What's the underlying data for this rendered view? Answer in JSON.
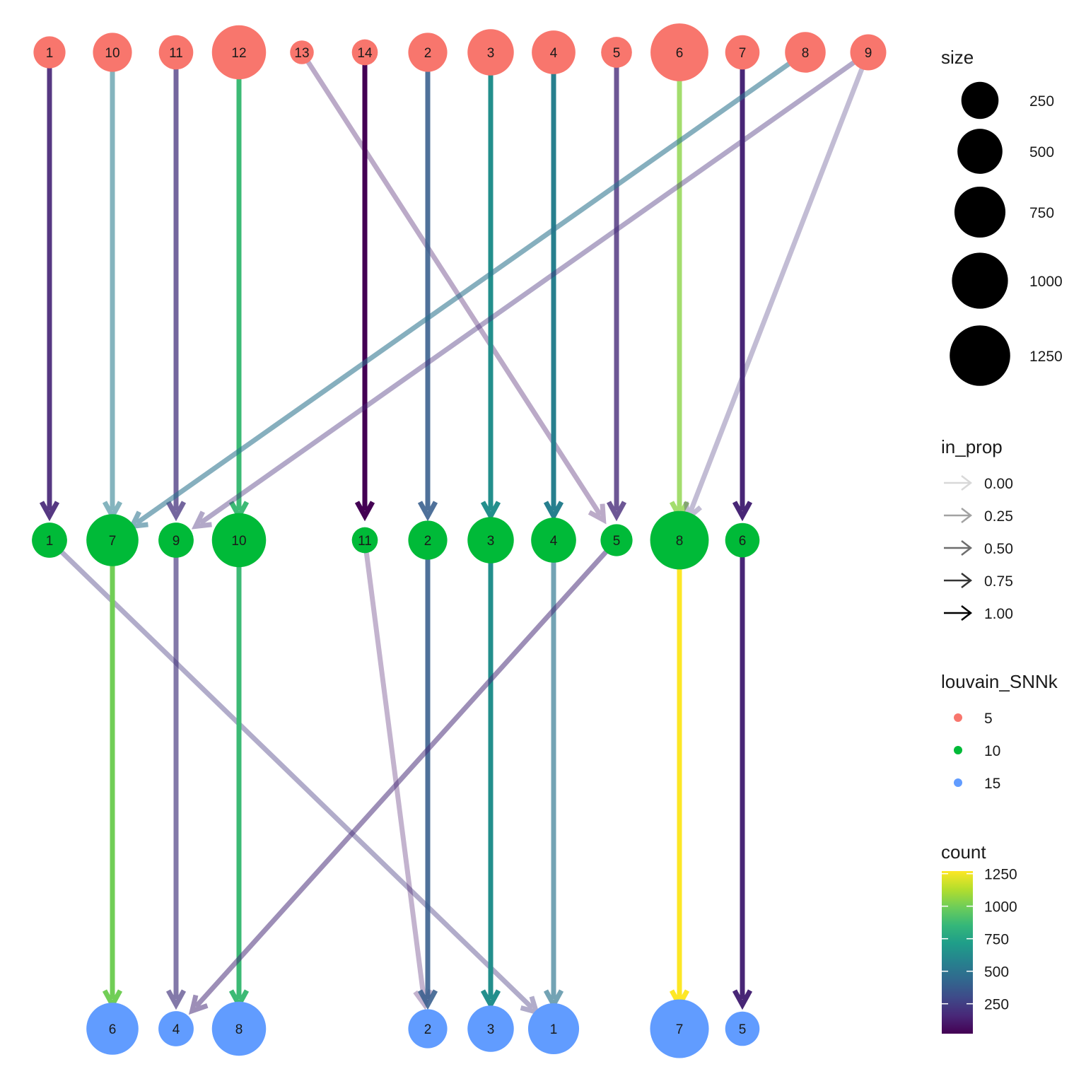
{
  "chart_data": {
    "type": "clustree",
    "levels": [
      {
        "resolution": "5",
        "color": "#F8766D",
        "clusters": [
          {
            "id": "1",
            "size": 130
          },
          {
            "id": "10",
            "size": 300
          },
          {
            "id": "11",
            "size": 180
          },
          {
            "id": "12",
            "size": 900
          },
          {
            "id": "13",
            "size": 20
          },
          {
            "id": "14",
            "size": 40
          },
          {
            "id": "2",
            "size": 300
          },
          {
            "id": "3",
            "size": 550
          },
          {
            "id": "4",
            "size": 450
          },
          {
            "id": "5",
            "size": 110
          },
          {
            "id": "6",
            "size": 1100
          },
          {
            "id": "7",
            "size": 180
          },
          {
            "id": "8",
            "size": 350
          },
          {
            "id": "9",
            "size": 220
          }
        ]
      },
      {
        "resolution": "10",
        "color": "#00BA38",
        "clusters": [
          {
            "id": "1",
            "size": 200
          },
          {
            "id": "7",
            "size": 800
          },
          {
            "id": "9",
            "size": 200
          },
          {
            "id": "10",
            "size": 900
          },
          {
            "id": "11",
            "size": 40
          },
          {
            "id": "2",
            "size": 300
          },
          {
            "id": "3",
            "size": 550
          },
          {
            "id": "4",
            "size": 500
          },
          {
            "id": "5",
            "size": 130
          },
          {
            "id": "8",
            "size": 1140
          },
          {
            "id": "6",
            "size": 180
          }
        ]
      },
      {
        "resolution": "15",
        "color": "#619CFF",
        "clusters": [
          {
            "id": "6",
            "size": 800
          },
          {
            "id": "4",
            "size": 200
          },
          {
            "id": "8",
            "size": 900
          },
          {
            "id": "2",
            "size": 300
          },
          {
            "id": "3",
            "size": 550
          },
          {
            "id": "1",
            "size": 750
          },
          {
            "id": "7",
            "size": 1150
          },
          {
            "id": "5",
            "size": 180
          }
        ]
      }
    ],
    "edges": [
      {
        "from": "5:1",
        "to": "10:1",
        "count": 160,
        "in_prop": 0.9
      },
      {
        "from": "5:10",
        "to": "10:7",
        "count": 550,
        "in_prop": 0.5
      },
      {
        "from": "5:11",
        "to": "10:9",
        "count": 200,
        "in_prop": 0.7
      },
      {
        "from": "5:12",
        "to": "10:10",
        "count": 870,
        "in_prop": 1.0
      },
      {
        "from": "5:13",
        "to": "10:5",
        "count": 100,
        "in_prop": 0.25
      },
      {
        "from": "5:14",
        "to": "10:11",
        "count": 20,
        "in_prop": 1.0
      },
      {
        "from": "5:2",
        "to": "10:2",
        "count": 380,
        "in_prop": 0.85
      },
      {
        "from": "5:3",
        "to": "10:3",
        "count": 640,
        "in_prop": 1.0
      },
      {
        "from": "5:4",
        "to": "10:4",
        "count": 560,
        "in_prop": 1.0
      },
      {
        "from": "5:5",
        "to": "10:5",
        "count": 170,
        "in_prop": 0.75
      },
      {
        "from": "5:6",
        "to": "10:8",
        "count": 1050,
        "in_prop": 0.75
      },
      {
        "from": "5:7",
        "to": "10:6",
        "count": 150,
        "in_prop": 1.0
      },
      {
        "from": "5:8",
        "to": "10:7",
        "count": 500,
        "in_prop": 0.5
      },
      {
        "from": "5:9",
        "to": "10:9",
        "count": 180,
        "in_prop": 0.3
      },
      {
        "from": "5:9",
        "to": "10:8",
        "count": 200,
        "in_prop": 0.2
      },
      {
        "from": "10:1",
        "to": "15:1",
        "count": 220,
        "in_prop": 0.3
      },
      {
        "from": "10:7",
        "to": "15:6",
        "count": 1000,
        "in_prop": 1.0
      },
      {
        "from": "10:9",
        "to": "15:4",
        "count": 210,
        "in_prop": 0.6
      },
      {
        "from": "10:10",
        "to": "15:8",
        "count": 870,
        "in_prop": 1.0
      },
      {
        "from": "10:11",
        "to": "15:2",
        "count": 100,
        "in_prop": 0.2
      },
      {
        "from": "10:2",
        "to": "15:2",
        "count": 380,
        "in_prop": 0.85
      },
      {
        "from": "10:3",
        "to": "15:3",
        "count": 640,
        "in_prop": 1.0
      },
      {
        "from": "10:4",
        "to": "15:1",
        "count": 500,
        "in_prop": 0.6
      },
      {
        "from": "10:5",
        "to": "15:4",
        "count": 170,
        "in_prop": 0.45
      },
      {
        "from": "10:8",
        "to": "15:7",
        "count": 1270,
        "in_prop": 1.0
      },
      {
        "from": "10:6",
        "to": "15:5",
        "count": 150,
        "in_prop": 1.0
      }
    ],
    "legends": {
      "size": {
        "title": "size",
        "items": [
          {
            "label": "250",
            "value": 250
          },
          {
            "label": "500",
            "value": 500
          },
          {
            "label": "750",
            "value": 750
          },
          {
            "label": "1000",
            "value": 1000
          },
          {
            "label": "1250",
            "value": 1250
          }
        ]
      },
      "in_prop": {
        "title": "in_prop",
        "items": [
          {
            "label": "0.00",
            "value": 0.0
          },
          {
            "label": "0.25",
            "value": 0.25
          },
          {
            "label": "0.50",
            "value": 0.5
          },
          {
            "label": "0.75",
            "value": 0.75
          },
          {
            "label": "1.00",
            "value": 1.0
          }
        ]
      },
      "louvain": {
        "title": "louvain_SNNk",
        "items": [
          {
            "label": "5",
            "color": "#F8766D"
          },
          {
            "label": "10",
            "color": "#00BA38"
          },
          {
            "label": "15",
            "color": "#619CFF"
          }
        ]
      },
      "count": {
        "title": "count",
        "range": [
          20,
          1270
        ],
        "ticks": [
          "1250",
          "1000",
          "750",
          "500",
          "250"
        ],
        "tick_values": [
          1250,
          1000,
          750,
          500,
          250
        ]
      }
    }
  }
}
